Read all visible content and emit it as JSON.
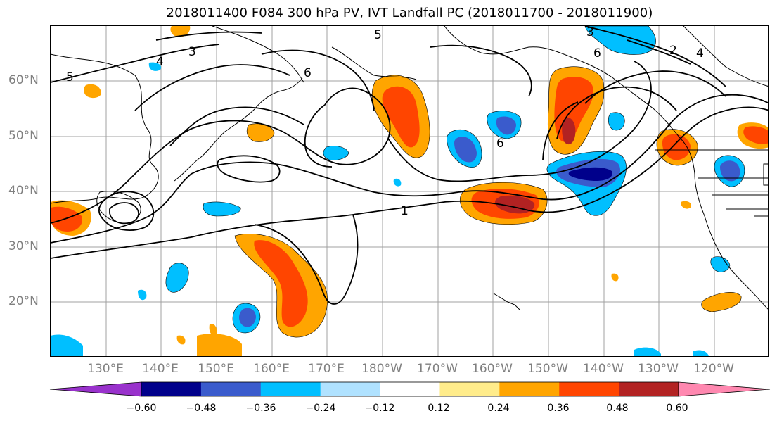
{
  "title": "2018011400 F084 300 hPa PV, IVT Landfall PC (2018011700 - 2018011900)",
  "map": {
    "lon_range": [
      120,
      250
    ],
    "lat_range": [
      10,
      70
    ],
    "lat_ticks": [
      "60°N",
      "50°N",
      "40°N",
      "30°N",
      "20°N"
    ],
    "lon_ticks": [
      "130°E",
      "140°E",
      "150°E",
      "160°E",
      "170°E",
      "180°W",
      "170°W",
      "160°W",
      "150°W",
      "140°W",
      "130°W",
      "120°W"
    ],
    "gridlines": true
  },
  "contour_labels": [
    "1",
    "3",
    "4",
    "5",
    "5",
    "6",
    "6",
    "6",
    "3",
    "2",
    "4"
  ],
  "colorbar": {
    "colors": [
      "#9932cc",
      "#00008b",
      "#3a5bcc",
      "#00bfff",
      "#b0e2ff",
      "#ffffff",
      "#ffec8b",
      "#ffa500",
      "#ff4500",
      "#b22222",
      "#ff88b0"
    ],
    "tick_labels": [
      "−0.60",
      "−0.48",
      "−0.36",
      "−0.24",
      "−0.12",
      "0.12",
      "0.24",
      "0.36",
      "0.48",
      "0.60"
    ],
    "extend": "both"
  }
}
